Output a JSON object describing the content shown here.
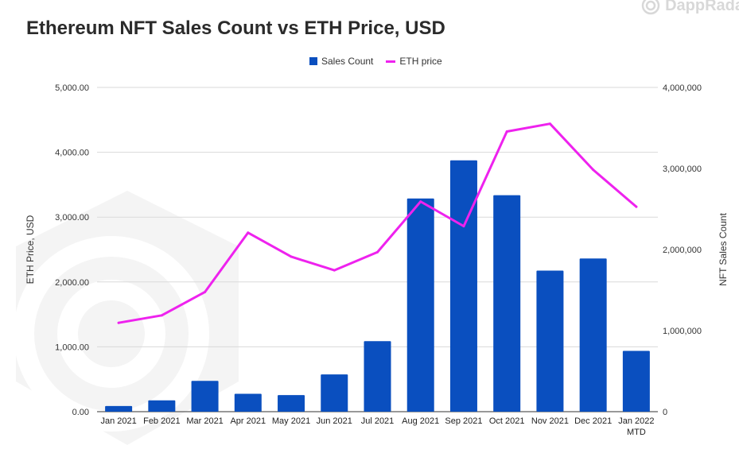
{
  "title": "Ethereum NFT Sales Count vs ETH Price, USD",
  "brand": {
    "name": "DappRadar",
    "visible_text": "DappRada",
    "icon": "dappradar-logo-icon"
  },
  "colors": {
    "bars": "#0a4fbf",
    "line": "#ee22ee",
    "grid": "#d9d9d9",
    "text": "#333333",
    "watermark": "#f3f3f3"
  },
  "chart_data": {
    "type": "bar+line",
    "title": "Ethereum NFT Sales Count vs ETH Price, USD",
    "categories": [
      "Jan 2021",
      "Feb 2021",
      "Mar 2021",
      "Apr 2021",
      "May 2021",
      "Jun 2021",
      "Jul 2021",
      "Aug 2021",
      "Sep 2021",
      "Oct 2021",
      "Nov 2021",
      "Dec 2021",
      "Jan 2022\nMTD"
    ],
    "series": [
      {
        "name": "Sales Count",
        "type": "bar",
        "axis": "right",
        "values": [
          70000,
          140000,
          380000,
          220000,
          205000,
          460000,
          870000,
          2630000,
          3100000,
          2670000,
          1740000,
          1890000,
          750000
        ]
      },
      {
        "name": "ETH price",
        "type": "line",
        "axis": "left",
        "values": [
          1370,
          1485,
          1845,
          2760,
          2390,
          2180,
          2460,
          3240,
          2860,
          4320,
          4440,
          3730,
          3160
        ]
      }
    ],
    "left_axis": {
      "label": "ETH Price, USD",
      "range": [
        0,
        5000
      ],
      "ticks": [
        "0.00",
        "1,000.00",
        "2,000.00",
        "3,000.00",
        "4,000.00",
        "5,000.00"
      ]
    },
    "right_axis": {
      "label": "NFT Sales Count",
      "range": [
        0,
        4000000
      ],
      "ticks": [
        "0",
        "1,000,000",
        "2,000,000",
        "3,000,000",
        "4,000,000"
      ]
    },
    "legend": {
      "position": "top-center",
      "entries": [
        "Sales Count",
        "ETH price"
      ]
    },
    "grid": true
  }
}
